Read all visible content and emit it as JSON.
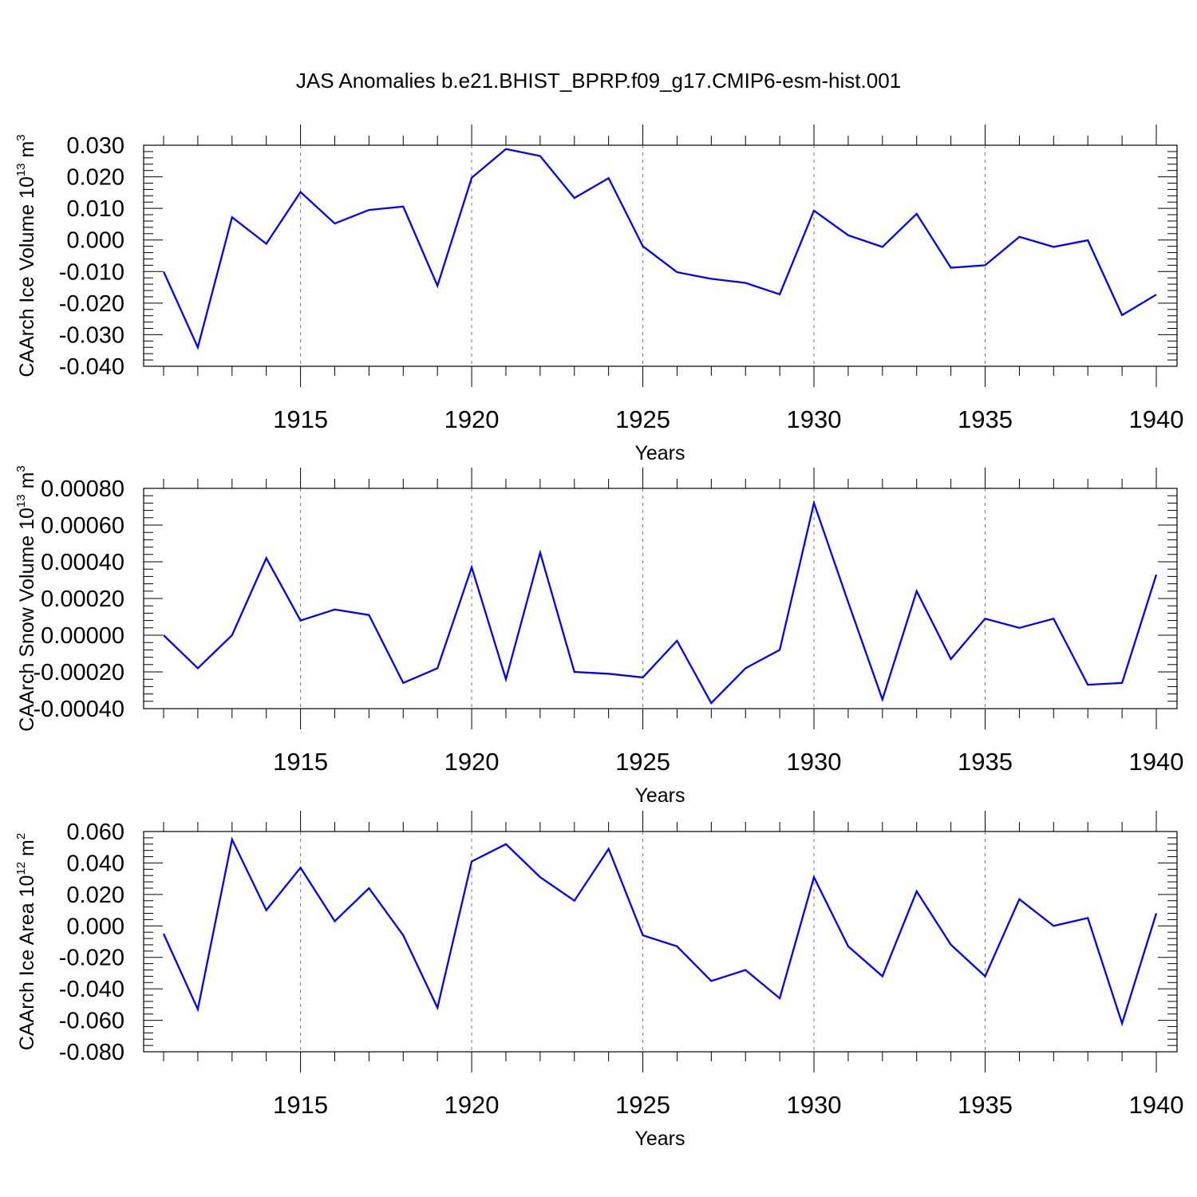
{
  "figure": {
    "title": "JAS Anomalies b.e21.BHIST_BPRP.f09_g17.CMIP6-esm-hist.001",
    "line_color": "#0000ff"
  },
  "chart_data": [
    {
      "type": "line",
      "title": "",
      "xlabel": "Years",
      "ylabel": "CAArch Ice Volume 10",
      "ylabel_exponent": "13",
      "ylabel_unit": "m",
      "ylabel_unit_exponent": "3",
      "xlim": [
        1911,
        1940
      ],
      "ylim": [
        -0.04,
        0.03
      ],
      "xticks": [
        "1915",
        "1920",
        "1925",
        "1930",
        "1935",
        "1940"
      ],
      "yticks": [
        "0.030",
        "0.020",
        "0.010",
        "0.000",
        "-0.010",
        "-0.020",
        "-0.030",
        "-0.040"
      ],
      "grid": "vertical dashed at major x ticks",
      "series": [
        {
          "color": "#0000ff",
          "x": [
            1911,
            1912,
            1913,
            1914,
            1915,
            1916,
            1917,
            1918,
            1919,
            1920,
            1921,
            1922,
            1923,
            1924,
            1925,
            1926,
            1927,
            1928,
            1929,
            1930,
            1931,
            1932,
            1933,
            1934,
            1935,
            1936,
            1937,
            1938,
            1939,
            1940
          ],
          "y": [
            -0.01,
            -0.034,
            0.0072,
            -0.0012,
            0.0152,
            0.0052,
            0.0095,
            0.0106,
            -0.0145,
            0.0197,
            0.0288,
            0.0266,
            0.0133,
            0.0196,
            -0.002,
            -0.0102,
            -0.0123,
            -0.0136,
            -0.0172,
            0.0093,
            0.0015,
            -0.0022,
            0.0083,
            -0.0088,
            -0.008,
            0.001,
            -0.0022,
            -0.0001,
            -0.0238,
            -0.0173
          ]
        }
      ]
    },
    {
      "type": "line",
      "title": "",
      "xlabel": "Years",
      "ylabel": "CAArch Snow Volume 10",
      "ylabel_exponent": "13",
      "ylabel_unit": "m",
      "ylabel_unit_exponent": "3",
      "xlim": [
        1911,
        1940
      ],
      "ylim": [
        -0.0004,
        0.0008
      ],
      "xticks": [
        "1915",
        "1920",
        "1925",
        "1930",
        "1935",
        "1940"
      ],
      "yticks": [
        "0.00080",
        "0.00060",
        "0.00040",
        "0.00020",
        "0.00000",
        "-0.00020",
        "-0.00040"
      ],
      "grid": "vertical dashed at major x ticks",
      "series": [
        {
          "color": "#0000ff",
          "x": [
            1911,
            1912,
            1913,
            1914,
            1915,
            1916,
            1917,
            1918,
            1919,
            1920,
            1921,
            1922,
            1923,
            1924,
            1925,
            1926,
            1927,
            1928,
            1929,
            1930,
            1931,
            1932,
            1933,
            1934,
            1935,
            1936,
            1937,
            1938,
            1939,
            1940
          ],
          "y": [
            0.0,
            -0.00018,
            0.0,
            0.00042,
            8e-05,
            0.00014,
            0.00011,
            -0.00026,
            -0.00018,
            0.00037,
            -0.00024,
            0.00045,
            -0.0002,
            -0.00021,
            -0.00023,
            -3e-05,
            -0.00037,
            -0.00018,
            -8e-05,
            0.00072,
            0.00018,
            -0.00035,
            0.00024,
            -0.00013,
            9e-05,
            4e-05,
            9e-05,
            -0.00027,
            -0.00026,
            0.00033
          ]
        }
      ]
    },
    {
      "type": "line",
      "title": "",
      "xlabel": "Years",
      "ylabel": "CAArch Ice Area 10",
      "ylabel_exponent": "12",
      "ylabel_unit": "m",
      "ylabel_unit_exponent": "2",
      "xlim": [
        1911,
        1940
      ],
      "ylim": [
        -0.08,
        0.06
      ],
      "xticks": [
        "1915",
        "1920",
        "1925",
        "1930",
        "1935",
        "1940"
      ],
      "yticks": [
        "0.060",
        "0.040",
        "0.020",
        "0.000",
        "-0.020",
        "-0.040",
        "-0.060",
        "-0.080"
      ],
      "grid": "vertical dashed at major x ticks",
      "series": [
        {
          "color": "#0000ff",
          "x": [
            1911,
            1912,
            1913,
            1914,
            1915,
            1916,
            1917,
            1918,
            1919,
            1920,
            1921,
            1922,
            1923,
            1924,
            1925,
            1926,
            1927,
            1928,
            1929,
            1930,
            1931,
            1932,
            1933,
            1934,
            1935,
            1936,
            1937,
            1938,
            1939,
            1940
          ],
          "y": [
            -0.005,
            -0.053,
            0.055,
            0.01,
            0.037,
            0.003,
            0.024,
            -0.006,
            -0.052,
            0.041,
            0.052,
            0.031,
            0.016,
            0.049,
            -0.006,
            -0.013,
            -0.035,
            -0.028,
            -0.046,
            0.031,
            -0.013,
            -0.032,
            0.022,
            -0.012,
            -0.032,
            0.017,
            0.0,
            0.005,
            -0.062,
            0.008
          ]
        }
      ]
    }
  ]
}
